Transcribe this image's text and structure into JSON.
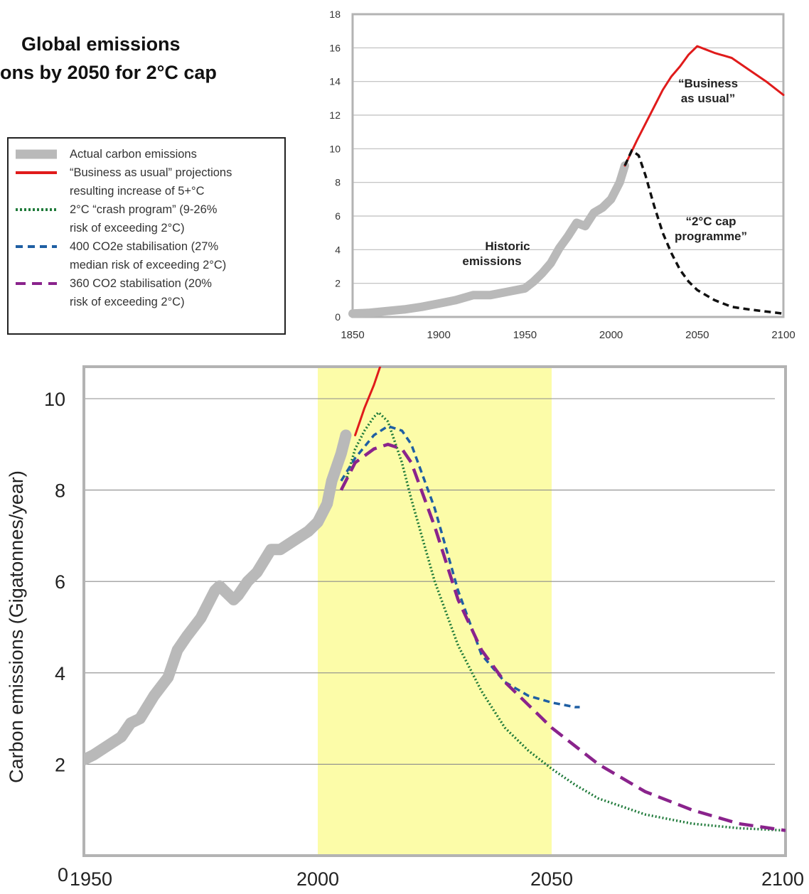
{
  "title": {
    "badge": "",
    "line1": "Global emissions",
    "line2": "ons by 2050 for 2°C cap"
  },
  "legend": {
    "items": [
      {
        "key": "actual",
        "color": "#b9b9b9",
        "style": "thick",
        "lines": [
          "Actual carbon emissions"
        ]
      },
      {
        "key": "bau",
        "color": "#e01b1b",
        "style": "solid",
        "lines": [
          "“Business as usual” projections",
          "resulting increase of 5+°C"
        ]
      },
      {
        "key": "crash",
        "color": "#1f7a3a",
        "style": "dotted",
        "lines": [
          "2°C “crash program” (9-26%",
          "risk of exceeding 2°C)"
        ]
      },
      {
        "key": "co2e400",
        "color": "#1f5fa3",
        "style": "dashed",
        "lines": [
          "400 CO2e stabilisation (27%",
          "median risk of exceeding 2°C)"
        ]
      },
      {
        "key": "co2360",
        "color": "#8a238c",
        "style": "longdash",
        "lines": [
          "360 CO2 stabilisation (20%",
          "risk of exceeding 2°C)"
        ]
      }
    ]
  },
  "colors": {
    "gridline": "#bdbdbd",
    "frame": "#b3b3b3",
    "highlight": "#fcfca8",
    "actual": "#b9b9b9",
    "bau": "#e01b1b",
    "cap": "#111111",
    "crash": "#1f7a3a",
    "co2e400": "#1f5fa3",
    "co2360": "#8a238c"
  },
  "chart_data": [
    {
      "type": "line",
      "xlim": [
        1850,
        2100
      ],
      "ylim": [
        0,
        18
      ],
      "xticks": [
        1850,
        1900,
        1950,
        2000,
        2050,
        2100
      ],
      "yticks": [
        0,
        2,
        4,
        6,
        8,
        10,
        12,
        14,
        16,
        18
      ],
      "grid": true,
      "annotations": [
        {
          "key": "historic",
          "lines": [
            "Historic",
            "emissions"
          ]
        },
        {
          "key": "bau",
          "lines": [
            "“Business",
            "as usual”"
          ]
        },
        {
          "key": "cap",
          "lines": [
            "“2°C cap",
            "programme”"
          ]
        }
      ],
      "series": [
        {
          "key": "actual",
          "x": [
            1850,
            1860,
            1870,
            1880,
            1890,
            1900,
            1910,
            1920,
            1930,
            1940,
            1950,
            1955,
            1960,
            1965,
            1970,
            1975,
            1980,
            1985,
            1990,
            1995,
            2000,
            2005,
            2008
          ],
          "y": [
            0.2,
            0.25,
            0.35,
            0.45,
            0.6,
            0.8,
            1.0,
            1.3,
            1.3,
            1.5,
            1.7,
            2.1,
            2.6,
            3.2,
            4.1,
            4.8,
            5.6,
            5.4,
            6.2,
            6.5,
            7.0,
            8.0,
            9.0
          ]
        },
        {
          "key": "bau",
          "x": [
            2008,
            2015,
            2020,
            2025,
            2030,
            2035,
            2040,
            2045,
            2050,
            2055,
            2060,
            2070,
            2080,
            2090,
            2100
          ],
          "y": [
            9.0,
            10.5,
            11.5,
            12.5,
            13.5,
            14.3,
            14.9,
            15.6,
            16.1,
            15.9,
            15.7,
            15.4,
            14.7,
            14.0,
            13.2
          ]
        },
        {
          "key": "cap",
          "x": [
            2008,
            2012,
            2016,
            2020,
            2025,
            2030,
            2035,
            2040,
            2045,
            2050,
            2060,
            2070,
            2080,
            2090,
            2100
          ],
          "y": [
            9.0,
            9.9,
            9.6,
            8.4,
            6.6,
            5.0,
            3.8,
            2.8,
            2.1,
            1.6,
            1.0,
            0.6,
            0.45,
            0.32,
            0.2
          ]
        }
      ]
    },
    {
      "type": "line",
      "ylabel": "Carbon emissions (Gigatonnes/year)",
      "xlim": [
        1950,
        2100
      ],
      "ylim": [
        0,
        10.7
      ],
      "xticks": [
        1950,
        2000,
        2050,
        2100
      ],
      "yticks": [
        0,
        2,
        4,
        6,
        8,
        10
      ],
      "grid": true,
      "highlight_range": [
        2000,
        2050
      ],
      "series": [
        {
          "key": "actual",
          "x": [
            1950,
            1952,
            1955,
            1958,
            1960,
            1962,
            1965,
            1968,
            1970,
            1972,
            1975,
            1978,
            1979,
            1980,
            1982,
            1983,
            1985,
            1987,
            1990,
            1992,
            1995,
            1998,
            2000,
            2002,
            2003,
            2005,
            2006
          ],
          "y": [
            2.1,
            2.2,
            2.4,
            2.6,
            2.9,
            3.0,
            3.5,
            3.9,
            4.5,
            4.8,
            5.2,
            5.8,
            5.9,
            5.8,
            5.6,
            5.7,
            6.0,
            6.2,
            6.7,
            6.7,
            6.9,
            7.1,
            7.3,
            7.7,
            8.2,
            8.8,
            9.2
          ]
        },
        {
          "key": "bau",
          "x": [
            2008,
            2010,
            2012,
            2014
          ],
          "y": [
            9.2,
            9.8,
            10.3,
            10.9
          ]
        },
        {
          "key": "crash",
          "x": [
            2006,
            2008,
            2010,
            2012,
            2013,
            2015,
            2018,
            2020,
            2025,
            2030,
            2035,
            2040,
            2045,
            2050,
            2055,
            2060,
            2070,
            2080,
            2090,
            2100
          ],
          "y": [
            8.2,
            8.9,
            9.3,
            9.6,
            9.7,
            9.5,
            8.6,
            7.8,
            6.0,
            4.6,
            3.6,
            2.8,
            2.3,
            1.9,
            1.55,
            1.25,
            0.9,
            0.7,
            0.6,
            0.55
          ]
        },
        {
          "key": "co2e400",
          "x": [
            2005,
            2008,
            2012,
            2015,
            2018,
            2020,
            2025,
            2030,
            2035,
            2040,
            2045,
            2050,
            2055,
            2056
          ],
          "y": [
            8.2,
            8.7,
            9.2,
            9.4,
            9.3,
            9.0,
            7.6,
            5.8,
            4.4,
            3.8,
            3.5,
            3.35,
            3.25,
            3.25
          ]
        },
        {
          "key": "co2360",
          "x": [
            2005,
            2008,
            2012,
            2015,
            2018,
            2020,
            2025,
            2030,
            2035,
            2040,
            2045,
            2050,
            2055,
            2060,
            2070,
            2080,
            2090,
            2100
          ],
          "y": [
            8.0,
            8.6,
            8.9,
            9.0,
            8.9,
            8.6,
            7.2,
            5.6,
            4.5,
            3.8,
            3.3,
            2.8,
            2.4,
            2.0,
            1.4,
            1.0,
            0.7,
            0.55
          ]
        }
      ]
    }
  ]
}
